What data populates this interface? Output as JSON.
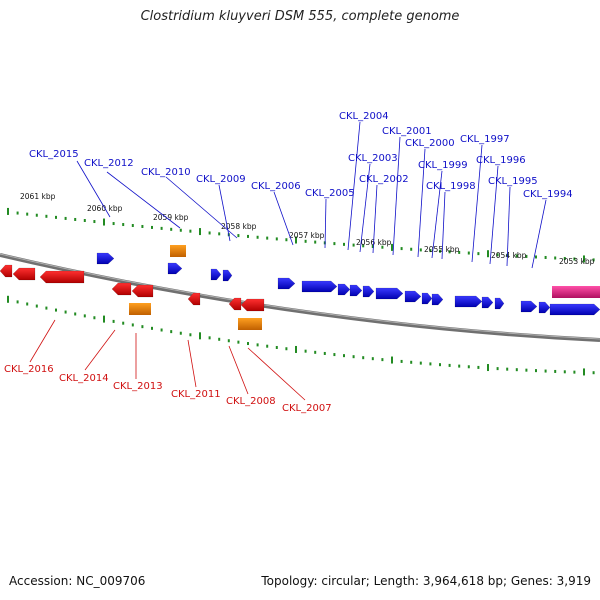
{
  "title": "Clostridium kluyveri DSM 555, complete genome",
  "footer": {
    "accession": "Accession: NC_009706",
    "topology": "Topology: circular; Length: 3,964,618 bp; Genes: 3,919"
  },
  "scale_labels": [
    "2061 kbp",
    "2060 kbp",
    "2059 kbp",
    "2058 kbp",
    "2057 kbp",
    "2056 kbp",
    "2055 kbp",
    "2054 kbp",
    "2053 kbp"
  ],
  "genes_top": [
    "CKL_2015",
    "CKL_2012",
    "CKL_2010",
    "CKL_2009",
    "CKL_2006",
    "CKL_2005",
    "CKL_2004",
    "CKL_2003",
    "CKL_2002",
    "CKL_2001",
    "CKL_2000",
    "CKL_1999",
    "CKL_1998",
    "CKL_1997",
    "CKL_1996",
    "CKL_1995",
    "CKL_1994"
  ],
  "genes_bottom": [
    "CKL_2016",
    "CKL_2014",
    "CKL_2013",
    "CKL_2011",
    "CKL_2008",
    "CKL_2007"
  ],
  "colors": {
    "forward_gene": "#0000ee",
    "reverse_gene": "#ee0000",
    "rna_gene": "#ff8c00",
    "pseudo_gene": "#ee2c88",
    "ticks": "#228b22",
    "top_labels": "#1010c8",
    "bottom_labels": "#d01010",
    "backbone": "#808080"
  }
}
